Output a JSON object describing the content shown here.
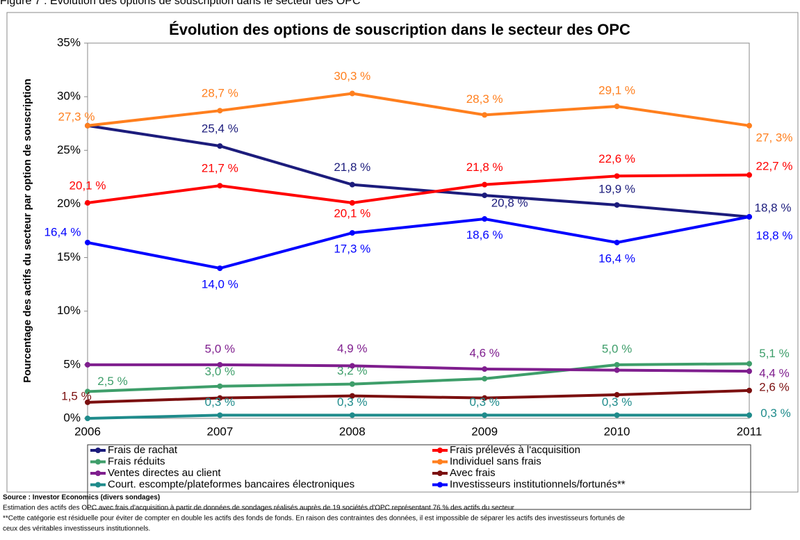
{
  "caption": "Figure 7 : Évolution des options de souscription dans le secteur des OPC",
  "chart_data": {
    "type": "line",
    "title": "Évolution des options de souscription dans le secteur des OPC",
    "y_label": "Pourcentage des actifs du secteur par option de souscription",
    "categories": [
      "2006",
      "2007",
      "2008",
      "2009",
      "2010",
      "2011"
    ],
    "ylim": [
      0,
      35
    ],
    "yticks": [
      {
        "value": 0,
        "label": "0%"
      },
      {
        "value": 5,
        "label": "5%"
      },
      {
        "value": 10,
        "label": "10%"
      },
      {
        "value": 15,
        "label": "15%"
      },
      {
        "value": 20,
        "label": "20%"
      },
      {
        "value": 25,
        "label": "25%"
      },
      {
        "value": 30,
        "label": "30%"
      },
      {
        "value": 35,
        "label": "35%"
      }
    ],
    "grid": false,
    "series": [
      {
        "name": "Frais de rachat",
        "color": "#1c1c7c",
        "values": [
          27.3,
          25.4,
          21.8,
          20.8,
          19.9,
          18.8
        ],
        "value_labels": [
          null,
          "25,4 %",
          "21,8 %",
          "20,8 %",
          "19,9 %",
          "18,8 %"
        ]
      },
      {
        "name": "Frais prélevés à l'acquisition",
        "color": "#ff0000",
        "values": [
          20.1,
          21.7,
          20.1,
          21.8,
          22.6,
          22.7
        ],
        "value_labels": [
          "20,1 %",
          "21,7 %",
          "20,1 %",
          "21,8 %",
          "22,6 %",
          "22,7 %"
        ]
      },
      {
        "name": "Frais réduits",
        "color": "#3e9e6a",
        "values": [
          2.5,
          3.0,
          3.2,
          3.7,
          5.0,
          5.1
        ],
        "value_labels": [
          "2,5 %",
          "3,0 %",
          "3,2 %",
          null,
          "5,0 %",
          "5,1 %"
        ]
      },
      {
        "name": "Individuel sans frais",
        "color": "#ff7f1e",
        "values": [
          27.3,
          28.7,
          30.3,
          28.3,
          29.1,
          27.3
        ],
        "value_labels": [
          "27,3 %",
          "28,7 %",
          "30,3 %",
          "28,3 %",
          "29,1 %",
          "27, 3%"
        ]
      },
      {
        "name": "Ventes directes au client",
        "color": "#7f1e8e",
        "values": [
          5.0,
          5.0,
          4.9,
          4.6,
          4.5,
          4.4
        ],
        "value_labels": [
          null,
          "5,0 %",
          "4,9 %",
          "4,6 %",
          null,
          "4,4 %"
        ]
      },
      {
        "name": "Avec frais",
        "color": "#7b0f0f",
        "values": [
          1.5,
          1.9,
          2.1,
          1.9,
          2.2,
          2.6
        ],
        "value_labels": [
          "1,5 %",
          null,
          null,
          null,
          null,
          "2,6 %"
        ]
      },
      {
        "name": "Court. escompte/plateformes bancaires électroniques",
        "color": "#1e8b8b",
        "values": [
          0.0,
          0.3,
          0.3,
          0.3,
          0.3,
          0.3
        ],
        "value_labels": [
          null,
          "0,3 %",
          "0,3 %",
          "0,3 %",
          "0,3 %",
          "0,3 %"
        ]
      },
      {
        "name": "Investisseurs institutionnels/fortunés**",
        "color": "#0000ff",
        "values": [
          16.4,
          14.0,
          17.3,
          18.6,
          16.4,
          18.8
        ],
        "value_labels": [
          "16,4 %",
          "14,0 %",
          "17,3 %",
          "18,6 %",
          "16,4 %",
          "18,8 %"
        ]
      }
    ]
  },
  "notes": {
    "source": "Source : Investor Economics (divers sondages)",
    "lines": [
      "Estimation des actifs des OPC avec frais d'acquisition à partir de données de sondages réalisés auprès de 19 sociétés d'OPC représentant 76 % des actifs du secteur",
      "**Cette catégorie est résiduelle pour éviter de compter en double les actifs des fonds de fonds. En raison des contraintes des données, il est impossible de séparer les actifs des investisseurs fortunés de",
      "ceux des véritables investisseurs institutionnels."
    ]
  }
}
